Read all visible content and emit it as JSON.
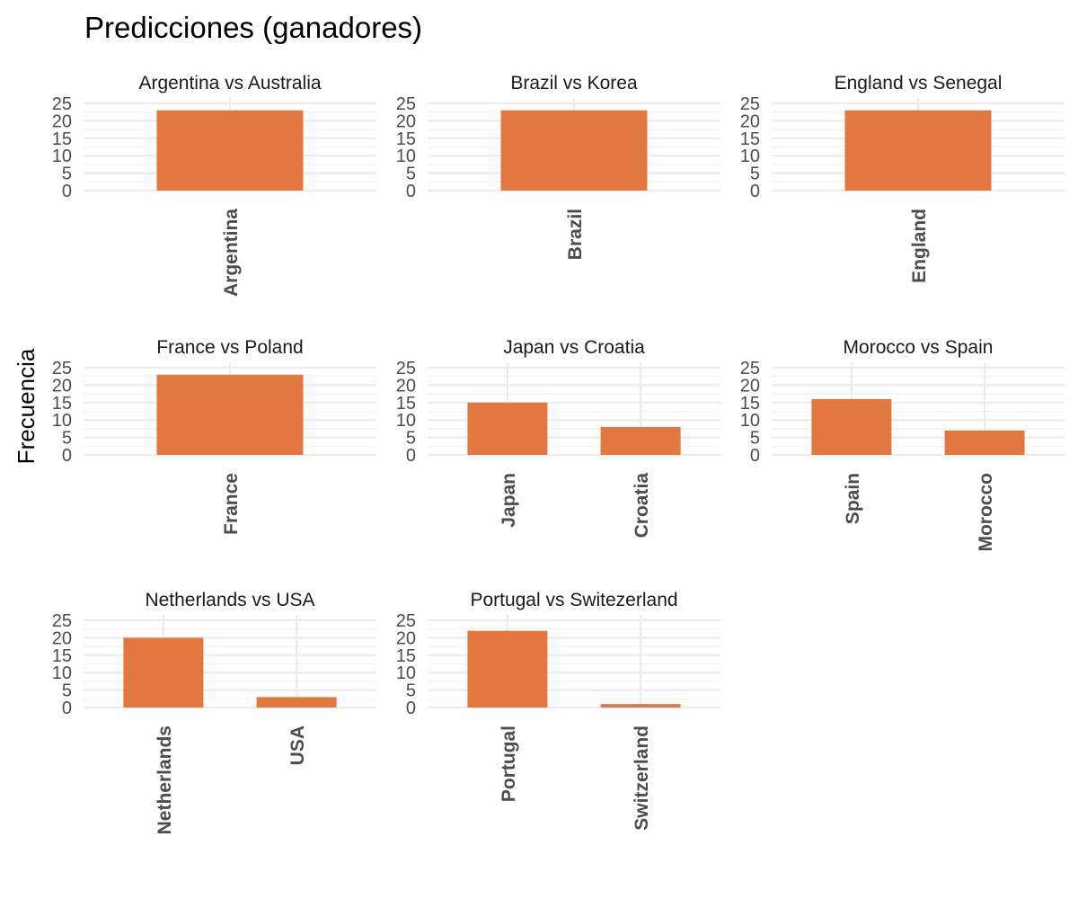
{
  "chart_data": {
    "type": "bar",
    "title": "Predicciones (ganadores)",
    "xlabel": "",
    "ylabel": "Frecuencia",
    "ylim": [
      0,
      25
    ],
    "yticks": [
      0,
      5,
      10,
      15,
      20,
      25
    ],
    "grid": true,
    "legend": "none",
    "bar_color": "#E07840",
    "panels": [
      {
        "title": "Argentina vs Australia",
        "categories": [
          "Argentina"
        ],
        "values": [
          23
        ]
      },
      {
        "title": "Brazil vs Korea",
        "categories": [
          "Brazil"
        ],
        "values": [
          23
        ]
      },
      {
        "title": "England vs Senegal",
        "categories": [
          "England"
        ],
        "values": [
          23
        ]
      },
      {
        "title": "France vs Poland",
        "categories": [
          "France"
        ],
        "values": [
          23
        ]
      },
      {
        "title": "Japan vs Croatia",
        "categories": [
          "Japan",
          "Croatia"
        ],
        "values": [
          15,
          8
        ]
      },
      {
        "title": "Morocco vs Spain",
        "categories": [
          "Spain",
          "Morocco"
        ],
        "values": [
          16,
          7
        ]
      },
      {
        "title": "Netherlands vs USA",
        "categories": [
          "Netherlands",
          "USA"
        ],
        "values": [
          20,
          3
        ]
      },
      {
        "title": "Portugal vs Switezerland",
        "categories": [
          "Portugal",
          "Switzerland"
        ],
        "values": [
          22,
          1
        ]
      }
    ]
  }
}
